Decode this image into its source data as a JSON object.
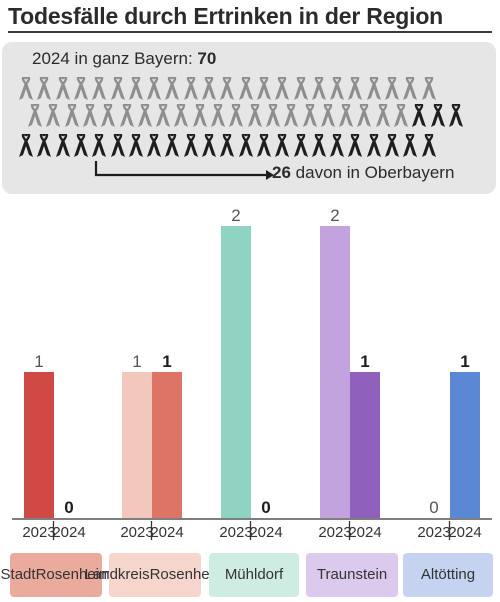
{
  "title": "Todesfälle durch Ertrinken in der Region",
  "bavaria": {
    "label": "2024 in ganz Bayern:",
    "total": "70"
  },
  "oberbayern": {
    "count": "26",
    "label": "davon in Oberbayern",
    "count_value": 26
  },
  "colors": {
    "ribbon_grey": "#8e8e8e",
    "ribbon_black": "#1e1e1e",
    "box_bg": "#e6e6e6"
  },
  "chart_data": {
    "type": "bar",
    "title": "Todesfälle durch Ertrinken in der Region",
    "categories": [
      "Stadt Rosenheim",
      "Landkreis Rosenheim",
      "Mühldorf",
      "Traunstein",
      "Altötting"
    ],
    "category_lines": [
      [
        "Stadt",
        "Rosenheim"
      ],
      [
        "Landkreis",
        "Rosenheim"
      ],
      [
        "Mühldorf"
      ],
      [
        "Traunstein"
      ],
      [
        "Altötting"
      ]
    ],
    "series": [
      {
        "name": "2023",
        "values": [
          1,
          1,
          2,
          2,
          0
        ]
      },
      {
        "name": "2024",
        "values": [
          0,
          1,
          0,
          1,
          1
        ]
      }
    ],
    "ylim": [
      0,
      2
    ],
    "bar_colors_2023": [
      "#cf4a44",
      "#f2c8bc",
      "#8fd3c2",
      "#c3a3de",
      "#5b88d4"
    ],
    "bar_colors_2024": [
      "#cf4a44",
      "#de7466",
      "#8fd3c2",
      "#9060bd",
      "#5b88d4"
    ],
    "label_bg_colors": [
      "#eaab9c",
      "#f6d6cc",
      "#cfece3",
      "#dccaee",
      "#c5d3f1"
    ]
  }
}
